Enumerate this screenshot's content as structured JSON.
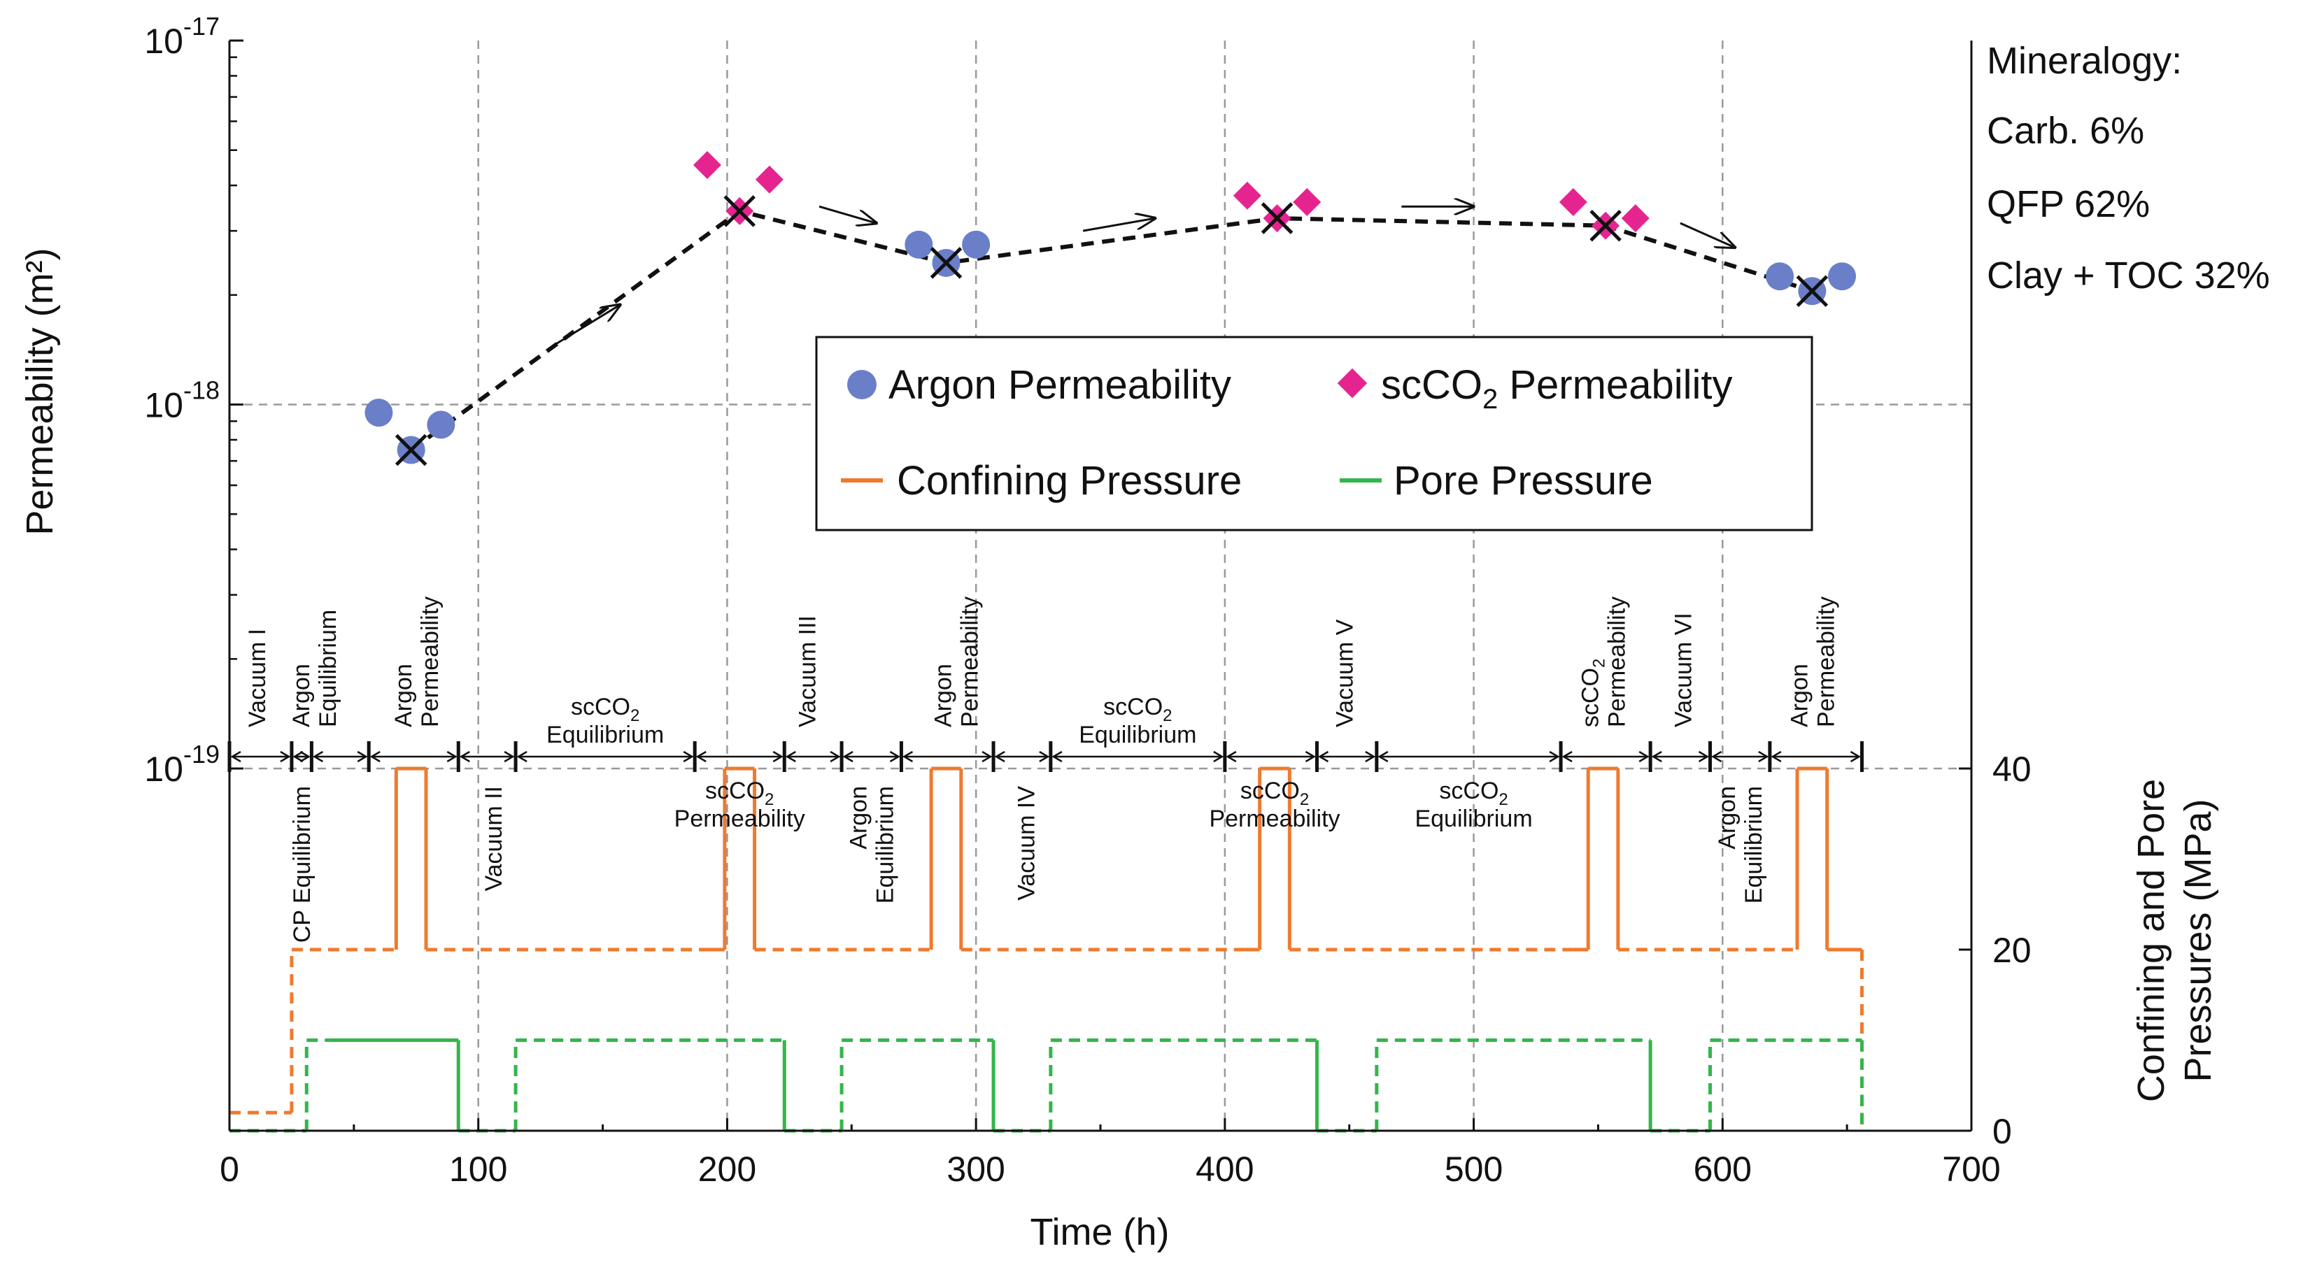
{
  "chart_data": {
    "type": "scatter",
    "xlabel": "Time (h)",
    "ylabel_left": "Permeability (m²)",
    "ylabel_right": [
      "Confining and Pore",
      "Pressures (MPa)"
    ],
    "xlim": [
      0,
      700
    ],
    "ylim_left": [
      1e-19,
      1e-17
    ],
    "ylim_right": [
      0,
      40
    ],
    "y_scale_left": "log",
    "x_ticks": [
      "0",
      "100",
      "200",
      "300",
      "400",
      "500",
      "600",
      "700"
    ],
    "y_left_ticks": [
      {
        "base": "10",
        "exp": "-19",
        "value": 1e-19
      },
      {
        "base": "10",
        "exp": "-18",
        "value": 1e-18
      },
      {
        "base": "10",
        "exp": "-17",
        "value": 1e-17
      }
    ],
    "y_right_ticks": [
      "0",
      "20",
      "40"
    ],
    "grid": "dashed at major ticks",
    "legend_position": "center-right",
    "legend": {
      "argon": "Argon Permeability",
      "sc_prefix": "scCO",
      "sc_sub": "2",
      "sc_suffix": " Permeability",
      "confining": "Confining Pressure",
      "pore": "Pore Pressure"
    },
    "mineralogy": [
      "Mineralogy:",
      "Carb. 6%",
      "QFP 62%",
      "Clay + TOC 32%"
    ],
    "colors": {
      "argon": "#6a7fc8",
      "scco2": "#e6248f",
      "confining": "#ef7a2e",
      "pore": "#33b64a",
      "trend": "#111111",
      "grid": "#999999"
    },
    "argon_points": [
      {
        "x": 60,
        "y": 9.5e-19
      },
      {
        "x": 85,
        "y": 8.8e-19
      },
      {
        "x": 73,
        "y": 7.5e-19
      },
      {
        "x": 277,
        "y": 2.75e-18
      },
      {
        "x": 300,
        "y": 2.75e-18
      },
      {
        "x": 288,
        "y": 2.45e-18
      },
      {
        "x": 623,
        "y": 2.25e-18
      },
      {
        "x": 648,
        "y": 2.25e-18
      },
      {
        "x": 636,
        "y": 2.05e-18
      }
    ],
    "scco2_points": [
      {
        "x": 192,
        "y": 4.55e-18
      },
      {
        "x": 217,
        "y": 4.15e-18
      },
      {
        "x": 205,
        "y": 3.4e-18
      },
      {
        "x": 409,
        "y": 3.75e-18
      },
      {
        "x": 433,
        "y": 3.6e-18
      },
      {
        "x": 421,
        "y": 3.25e-18
      },
      {
        "x": 540,
        "y": 3.6e-18
      },
      {
        "x": 565,
        "y": 3.25e-18
      },
      {
        "x": 553,
        "y": 3.1e-18
      }
    ],
    "mean_points": [
      {
        "x": 73,
        "y": 7.5e-19
      },
      {
        "x": 205,
        "y": 3.4e-18
      },
      {
        "x": 288,
        "y": 2.45e-18
      },
      {
        "x": 421,
        "y": 3.25e-18
      },
      {
        "x": 553,
        "y": 3.1e-18
      },
      {
        "x": 636,
        "y": 2.05e-18
      }
    ],
    "trend_line": [
      {
        "x": 73,
        "y": 7.5e-19
      },
      {
        "x": 205,
        "y": 3.4e-18
      },
      {
        "x": 288,
        "y": 2.45e-18
      },
      {
        "x": 421,
        "y": 3.25e-18
      },
      {
        "x": 553,
        "y": 3.1e-18
      },
      {
        "x": 636,
        "y": 2.05e-18
      }
    ],
    "trend_arrows": [
      {
        "x1": 130,
        "y1": 1.45e-18,
        "x2": 157,
        "y2": 1.88e-18
      },
      {
        "x1": 237,
        "y1": 3.5e-18,
        "x2": 260,
        "y2": 3.15e-18
      },
      {
        "x1": 343,
        "y1": 3e-18,
        "x2": 372,
        "y2": 3.25e-18
      },
      {
        "x1": 471,
        "y1": 3.5e-18,
        "x2": 500,
        "y2": 3.5e-18
      },
      {
        "x1": 583,
        "y1": 3.15e-18,
        "x2": 605,
        "y2": 2.7e-18
      }
    ],
    "confining_pressure": [
      {
        "x": 0,
        "y": 2,
        "style": "dashed"
      },
      {
        "x": 25,
        "y": 2,
        "style": "dashed"
      },
      {
        "x": 25,
        "y": 20,
        "style": "dashed"
      },
      {
        "x": 67,
        "y": 20,
        "style": "dashed"
      },
      {
        "x": 67,
        "y": 40,
        "style": "solid"
      },
      {
        "x": 79,
        "y": 40,
        "style": "solid"
      },
      {
        "x": 79,
        "y": 20,
        "style": "solid"
      },
      {
        "x": 192,
        "y": 20,
        "style": "dashed"
      },
      {
        "x": 199,
        "y": 20,
        "style": "solid"
      },
      {
        "x": 199,
        "y": 40,
        "style": "solid"
      },
      {
        "x": 211,
        "y": 40,
        "style": "solid"
      },
      {
        "x": 211,
        "y": 20,
        "style": "solid"
      },
      {
        "x": 282,
        "y": 20,
        "style": "dashed"
      },
      {
        "x": 282,
        "y": 40,
        "style": "solid"
      },
      {
        "x": 294,
        "y": 40,
        "style": "solid"
      },
      {
        "x": 294,
        "y": 20,
        "style": "solid"
      },
      {
        "x": 408,
        "y": 20,
        "style": "dashed"
      },
      {
        "x": 414,
        "y": 20,
        "style": "solid"
      },
      {
        "x": 414,
        "y": 40,
        "style": "solid"
      },
      {
        "x": 426,
        "y": 40,
        "style": "solid"
      },
      {
        "x": 426,
        "y": 20,
        "style": "solid"
      },
      {
        "x": 540,
        "y": 20,
        "style": "dashed"
      },
      {
        "x": 546,
        "y": 20,
        "style": "solid"
      },
      {
        "x": 546,
        "y": 40,
        "style": "solid"
      },
      {
        "x": 558,
        "y": 40,
        "style": "solid"
      },
      {
        "x": 558,
        "y": 20,
        "style": "solid"
      },
      {
        "x": 630,
        "y": 20,
        "style": "dashed"
      },
      {
        "x": 630,
        "y": 40,
        "style": "solid"
      },
      {
        "x": 642,
        "y": 40,
        "style": "solid"
      },
      {
        "x": 642,
        "y": 20,
        "style": "solid"
      },
      {
        "x": 656,
        "y": 20,
        "style": "solid"
      },
      {
        "x": 656,
        "y": 0,
        "style": "dashed"
      }
    ],
    "pore_pressure": [
      {
        "x": 0,
        "y": 0,
        "style": "dashed"
      },
      {
        "x": 31,
        "y": 0,
        "style": "dashed"
      },
      {
        "x": 31,
        "y": 10,
        "style": "dashed"
      },
      {
        "x": 40,
        "y": 10,
        "style": "dashed"
      },
      {
        "x": 92,
        "y": 10,
        "style": "solid"
      },
      {
        "x": 92,
        "y": 0,
        "style": "solid"
      },
      {
        "x": 115,
        "y": 0,
        "style": "dashed"
      },
      {
        "x": 115,
        "y": 10,
        "style": "dashed"
      },
      {
        "x": 223,
        "y": 10,
        "style": "dashed"
      },
      {
        "x": 223,
        "y": 0,
        "style": "solid"
      },
      {
        "x": 246,
        "y": 0,
        "style": "dashed"
      },
      {
        "x": 246,
        "y": 10,
        "style": "dashed"
      },
      {
        "x": 307,
        "y": 10,
        "style": "dashed"
      },
      {
        "x": 307,
        "y": 0,
        "style": "solid"
      },
      {
        "x": 330,
        "y": 0,
        "style": "dashed"
      },
      {
        "x": 330,
        "y": 10,
        "style": "dashed"
      },
      {
        "x": 437,
        "y": 10,
        "style": "dashed"
      },
      {
        "x": 437,
        "y": 0,
        "style": "solid"
      },
      {
        "x": 461,
        "y": 0,
        "style": "dashed"
      },
      {
        "x": 461,
        "y": 10,
        "style": "dashed"
      },
      {
        "x": 571,
        "y": 10,
        "style": "dashed"
      },
      {
        "x": 571,
        "y": 0,
        "style": "solid"
      },
      {
        "x": 595,
        "y": 0,
        "style": "dashed"
      },
      {
        "x": 595,
        "y": 10,
        "style": "dashed"
      },
      {
        "x": 656,
        "y": 10,
        "style": "dashed"
      },
      {
        "x": 656,
        "y": 0,
        "style": "dashed"
      }
    ],
    "phase_boundaries": [
      0,
      25,
      33,
      56,
      92,
      115,
      187,
      223,
      246,
      270,
      307,
      330,
      400,
      437,
      461,
      535,
      571,
      595,
      619,
      656
    ],
    "phase_labels": [
      {
        "x": 11,
        "lines": [
          "Vacuum I"
        ],
        "side": "above"
      },
      {
        "x": 34,
        "lines": [
          "Argon",
          "Equilibrium"
        ],
        "side": "above"
      },
      {
        "x": 75,
        "lines": [
          "Argon",
          "Permeability"
        ],
        "side": "above"
      },
      {
        "x": 151,
        "lines": [
          "scCO|2",
          "Equilibrium"
        ],
        "side": "above",
        "horizontal": true
      },
      {
        "x": 232,
        "lines": [
          "Vacuum III"
        ],
        "side": "above"
      },
      {
        "x": 292,
        "lines": [
          "Argon",
          "Permeability"
        ],
        "side": "above"
      },
      {
        "x": 365,
        "lines": [
          "scCO|2",
          "Equilibrium"
        ],
        "side": "above",
        "horizontal": true
      },
      {
        "x": 448,
        "lines": [
          "Vacuum V"
        ],
        "side": "above"
      },
      {
        "x": 552,
        "lines": [
          "scCO|2",
          "Permeability"
        ],
        "side": "above"
      },
      {
        "x": 584,
        "lines": [
          "Vacuum VI"
        ],
        "side": "above"
      },
      {
        "x": 636,
        "lines": [
          "Argon",
          "Permeability"
        ],
        "side": "above"
      },
      {
        "x": 29,
        "lines": [
          "CP Equilibrium"
        ],
        "side": "below"
      },
      {
        "x": 106,
        "lines": [
          "Vacuum II"
        ],
        "side": "below"
      },
      {
        "x": 205,
        "lines": [
          "scCO|2",
          "Permeability"
        ],
        "side": "below",
        "horizontal": true
      },
      {
        "x": 258,
        "lines": [
          "Argon",
          "Equilibrium"
        ],
        "side": "below"
      },
      {
        "x": 320,
        "lines": [
          "Vacuum IV"
        ],
        "side": "below"
      },
      {
        "x": 420,
        "lines": [
          "scCO|2",
          "Permeability"
        ],
        "side": "below",
        "horizontal": true
      },
      {
        "x": 500,
        "lines": [
          "scCO|2",
          "Equilibrium"
        ],
        "side": "below",
        "horizontal": true
      },
      {
        "x": 607,
        "lines": [
          "Argon",
          "Equilibrium"
        ],
        "side": "below"
      }
    ]
  }
}
